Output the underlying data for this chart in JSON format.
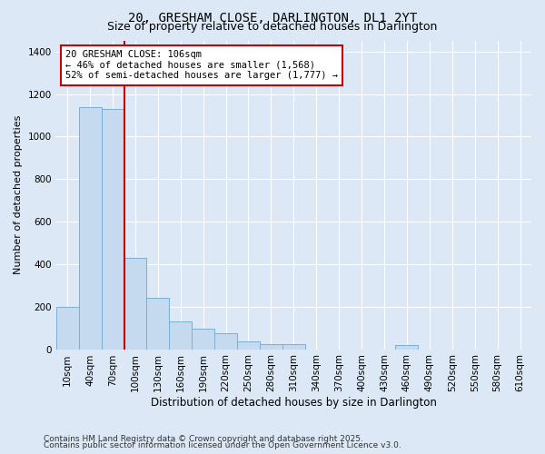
{
  "title1": "20, GRESHAM CLOSE, DARLINGTON, DL1 2YT",
  "title2": "Size of property relative to detached houses in Darlington",
  "xlabel": "Distribution of detached houses by size in Darlington",
  "ylabel": "Number of detached properties",
  "categories": [
    "10sqm",
    "40sqm",
    "70sqm",
    "100sqm",
    "130sqm",
    "160sqm",
    "190sqm",
    "220sqm",
    "250sqm",
    "280sqm",
    "310sqm",
    "340sqm",
    "370sqm",
    "400sqm",
    "430sqm",
    "460sqm",
    "490sqm",
    "520sqm",
    "550sqm",
    "580sqm",
    "610sqm"
  ],
  "values": [
    200,
    1140,
    1130,
    430,
    240,
    130,
    95,
    75,
    35,
    25,
    25,
    0,
    0,
    0,
    0,
    20,
    0,
    0,
    0,
    0,
    0
  ],
  "bar_color": "#c5d9ef",
  "bar_edgecolor": "#7aaed4",
  "vline_color": "#cc0000",
  "annotation_text": "20 GRESHAM CLOSE: 106sqm\n← 46% of detached houses are smaller (1,568)\n52% of semi-detached houses are larger (1,777) →",
  "annotation_box_color": "#ffffff",
  "annotation_box_edgecolor": "#cc0000",
  "ylim": [
    0,
    1450
  ],
  "yticks": [
    0,
    200,
    400,
    600,
    800,
    1000,
    1200,
    1400
  ],
  "background_color": "#dce8f5",
  "plot_bg_color": "#dce8f5",
  "grid_color": "#ffffff",
  "footer1": "Contains HM Land Registry data © Crown copyright and database right 2025.",
  "footer2": "Contains public sector information licensed under the Open Government Licence v3.0.",
  "title1_fontsize": 10,
  "title2_fontsize": 9
}
